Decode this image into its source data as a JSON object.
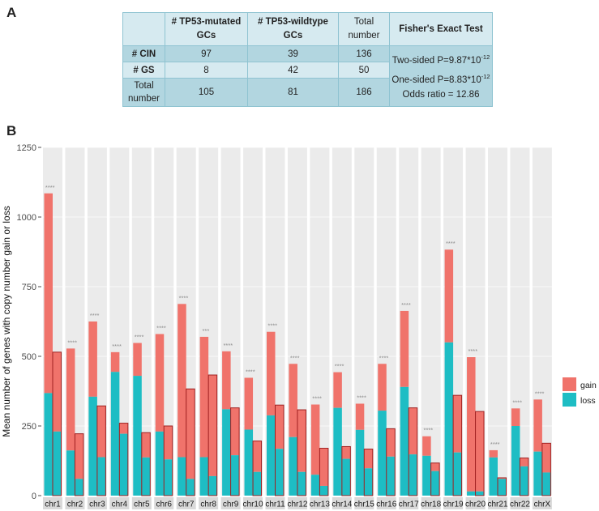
{
  "panels": {
    "a": "A",
    "b": "B"
  },
  "table": {
    "header": {
      "blank": "",
      "col1": "# TP53-mutated GCs",
      "col2": "# TP53-wildtype GCs",
      "col3": "Total number",
      "col4": "Fisher's Exact Test"
    },
    "rows": [
      {
        "label": "# CIN",
        "c1": "97",
        "c2": "39",
        "c3": "136"
      },
      {
        "label": "# GS",
        "c1": "8",
        "c2": "42",
        "c3": "50"
      },
      {
        "label": "Total number",
        "c1": "105",
        "c2": "81",
        "c3": "186"
      }
    ],
    "fisher": {
      "two_sided": "Two-sided P=9.87*10",
      "two_sided_exp": "-12",
      "one_sided": "One-sided P=8.83*10",
      "one_sided_exp": "-12",
      "odds": "Odds ratio = 12.86"
    }
  },
  "chart_data": {
    "type": "bar",
    "ylabel": "Mean number of genes with copy number gain or loss",
    "ylim": [
      0,
      1250
    ],
    "yticks": [
      0,
      250,
      500,
      750,
      1000,
      1250
    ],
    "legend": {
      "entries": [
        "gain",
        "loss"
      ],
      "position": "right"
    },
    "colors": {
      "gain": "#f0736b",
      "loss": "#1ebdc4",
      "panel_bg": "#ebebeb",
      "strip_bg": "#d9d9d9",
      "outline": "#a02020"
    },
    "facets": [
      {
        "chr": "chr1",
        "bars": [
          {
            "loss": 368,
            "total": 1085
          },
          {
            "loss": 230,
            "total": 515
          }
        ],
        "sig": "****"
      },
      {
        "chr": "chr2",
        "bars": [
          {
            "loss": 162,
            "total": 528
          },
          {
            "loss": 60,
            "total": 222
          }
        ],
        "sig": "****"
      },
      {
        "chr": "chr3",
        "bars": [
          {
            "loss": 355,
            "total": 625
          },
          {
            "loss": 138,
            "total": 322
          }
        ],
        "sig": "****"
      },
      {
        "chr": "chr4",
        "bars": [
          {
            "loss": 444,
            "total": 515
          },
          {
            "loss": 222,
            "total": 260
          }
        ],
        "sig": "****"
      },
      {
        "chr": "chr5",
        "bars": [
          {
            "loss": 430,
            "total": 548
          },
          {
            "loss": 137,
            "total": 226
          }
        ],
        "sig": "****"
      },
      {
        "chr": "chr6",
        "bars": [
          {
            "loss": 230,
            "total": 580
          },
          {
            "loss": 130,
            "total": 250
          }
        ],
        "sig": "****"
      },
      {
        "chr": "chr7",
        "bars": [
          {
            "loss": 138,
            "total": 688
          },
          {
            "loss": 60,
            "total": 383
          }
        ],
        "sig": "****"
      },
      {
        "chr": "chr8",
        "bars": [
          {
            "loss": 138,
            "total": 570
          },
          {
            "loss": 70,
            "total": 433
          }
        ],
        "sig": "***"
      },
      {
        "chr": "chr9",
        "bars": [
          {
            "loss": 310,
            "total": 518
          },
          {
            "loss": 145,
            "total": 315
          }
        ],
        "sig": "****"
      },
      {
        "chr": "chr10",
        "bars": [
          {
            "loss": 237,
            "total": 423
          },
          {
            "loss": 85,
            "total": 196
          }
        ],
        "sig": "****"
      },
      {
        "chr": "chr11",
        "bars": [
          {
            "loss": 288,
            "total": 588
          },
          {
            "loss": 168,
            "total": 325
          }
        ],
        "sig": "****"
      },
      {
        "chr": "chr12",
        "bars": [
          {
            "loss": 210,
            "total": 473
          },
          {
            "loss": 85,
            "total": 308
          }
        ],
        "sig": "****"
      },
      {
        "chr": "chr13",
        "bars": [
          {
            "loss": 75,
            "total": 327
          },
          {
            "loss": 35,
            "total": 170
          }
        ],
        "sig": "****"
      },
      {
        "chr": "chr14",
        "bars": [
          {
            "loss": 315,
            "total": 443
          },
          {
            "loss": 132,
            "total": 176
          }
        ],
        "sig": "****"
      },
      {
        "chr": "chr15",
        "bars": [
          {
            "loss": 236,
            "total": 330
          },
          {
            "loss": 98,
            "total": 167
          }
        ],
        "sig": "****"
      },
      {
        "chr": "chr16",
        "bars": [
          {
            "loss": 305,
            "total": 473
          },
          {
            "loss": 140,
            "total": 240
          }
        ],
        "sig": "****"
      },
      {
        "chr": "chr17",
        "bars": [
          {
            "loss": 390,
            "total": 663
          },
          {
            "loss": 148,
            "total": 315
          }
        ],
        "sig": "****"
      },
      {
        "chr": "chr18",
        "bars": [
          {
            "loss": 143,
            "total": 213
          },
          {
            "loss": 88,
            "total": 117
          }
        ],
        "sig": "****"
      },
      {
        "chr": "chr19",
        "bars": [
          {
            "loss": 550,
            "total": 883
          },
          {
            "loss": 155,
            "total": 360
          }
        ],
        "sig": "****"
      },
      {
        "chr": "chr20",
        "bars": [
          {
            "loss": 15,
            "total": 497
          },
          {
            "loss": 15,
            "total": 302
          }
        ],
        "sig": "****"
      },
      {
        "chr": "chr21",
        "bars": [
          {
            "loss": 137,
            "total": 163
          },
          {
            "loss": 60,
            "total": 64
          }
        ],
        "sig": "****"
      },
      {
        "chr": "chr22",
        "bars": [
          {
            "loss": 250,
            "total": 313
          },
          {
            "loss": 105,
            "total": 135
          }
        ],
        "sig": "****"
      },
      {
        "chr": "chrX",
        "bars": [
          {
            "loss": 158,
            "total": 345
          },
          {
            "loss": 83,
            "total": 188
          }
        ],
        "sig": "****"
      }
    ]
  }
}
